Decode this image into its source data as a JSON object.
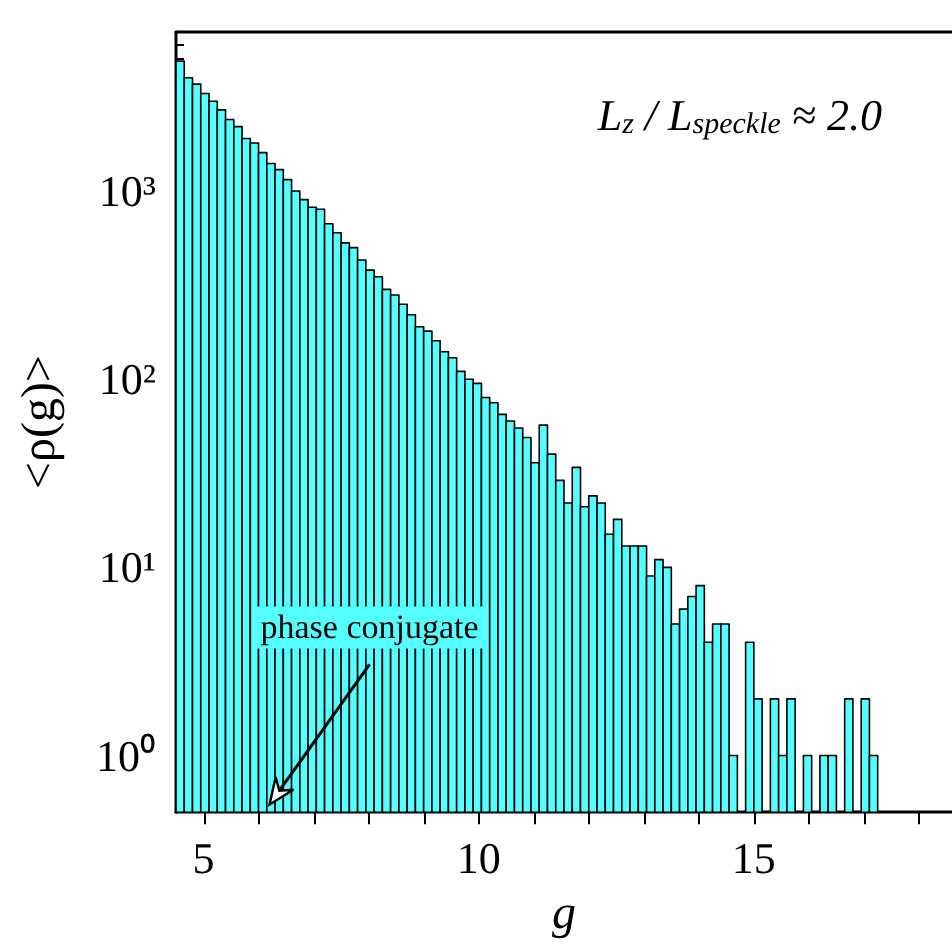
{
  "chart_data": {
    "type": "histogram",
    "title": "L$_{z}$ / L$_{speckle}$ ≈ 2.0",
    "xlabel": "g",
    "ylabel": "<ρ(g)>",
    "color": "#55ffff",
    "log": "y",
    "bins": [
      4.5,
      4.65,
      4.8,
      4.95,
      5.1,
      5.25,
      5.4,
      5.55,
      5.7,
      5.85,
      6.0,
      6.15,
      6.3,
      6.45,
      6.6,
      6.75,
      6.9,
      7.05,
      7.2,
      7.35,
      7.5,
      7.65,
      7.8,
      7.95,
      8.1,
      8.25,
      8.4,
      8.55,
      8.7,
      8.85,
      9.0,
      9.15,
      9.3,
      9.45,
      9.6,
      9.75,
      9.9,
      10.05,
      10.2,
      10.35,
      10.5,
      10.65,
      10.8,
      10.95,
      11.1,
      11.25,
      11.4,
      11.55,
      11.7,
      11.85,
      12.0,
      12.15,
      12.3,
      12.45,
      12.6,
      12.75,
      12.9,
      13.05,
      13.2,
      13.35,
      13.5,
      13.65,
      13.8,
      13.95,
      14.1,
      14.25,
      14.4,
      14.55,
      14.7,
      14.85,
      15.0,
      15.15,
      15.3,
      15.45,
      15.6,
      15.75,
      15.9,
      16.05,
      16.2,
      16.35,
      16.5,
      16.65,
      16.8,
      16.95,
      17.1,
      17.25
    ],
    "values": [
      4900,
      4000,
      3700,
      3300,
      3000,
      2700,
      2400,
      2200,
      1900,
      1800,
      1600,
      1400,
      1300,
      1150,
      1000,
      900,
      820,
      800,
      670,
      600,
      530,
      500,
      430,
      380,
      350,
      300,
      280,
      250,
      220,
      190,
      180,
      160,
      140,
      130,
      110,
      100,
      95,
      80,
      75,
      65,
      60,
      55,
      49,
      36,
      57,
      40,
      29,
      22,
      34,
      21,
      24,
      22,
      15,
      18,
      13,
      13,
      13,
      9,
      11,
      10,
      5,
      6,
      7,
      8,
      4,
      5,
      5,
      1,
      null,
      4,
      2,
      null,
      2,
      1,
      2,
      null,
      1,
      null,
      1,
      1,
      null,
      2,
      null,
      2,
      1
    ],
    "xlim": [
      4.5,
      18.6
    ],
    "xticks": [
      5,
      {
        "value": 6,
        "label": null
      },
      {
        "value": 7,
        "label": null
      },
      {
        "value": 8,
        "label": null
      },
      {
        "value": 9,
        "label": null
      },
      10,
      {
        "value": 11,
        "label": null
      },
      {
        "value": 12,
        "label": null
      },
      {
        "value": 13,
        "label": null
      },
      {
        "value": 14,
        "label": null
      },
      15,
      {
        "value": 16,
        "label": null
      },
      {
        "value": 17,
        "label": null
      },
      {
        "value": 18,
        "label": null
      }
    ],
    "ylim": [
      0.5,
      7000
    ],
    "yticks": [
      {
        "value": 1,
        "label": "10⁰"
      },
      {
        "value": 10,
        "label": "10¹"
      },
      {
        "value": 100,
        "label": "10²"
      },
      {
        "value": 1000,
        "label": "10³"
      }
    ],
    "annotations": [
      {
        "text": "phase conjugate",
        "x": 6.2,
        "y": 0.55
      }
    ],
    "grid": false
  }
}
